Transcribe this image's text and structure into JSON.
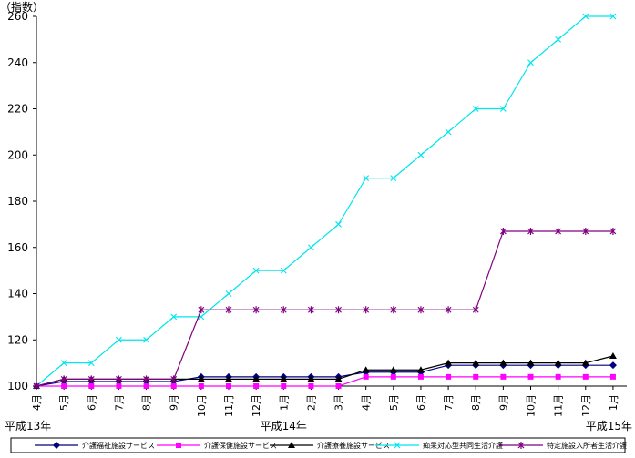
{
  "chart_data": {
    "type": "line",
    "y_unit_label": "（指数）",
    "ylim": [
      100,
      260
    ],
    "yticks": [
      100,
      120,
      140,
      160,
      180,
      200,
      220,
      240,
      260
    ],
    "categories": [
      "4月",
      "5月",
      "6月",
      "7月",
      "8月",
      "9月",
      "10月",
      "11月",
      "12月",
      "1月",
      "2月",
      "3月",
      "4月",
      "5月",
      "6月",
      "7月",
      "8月",
      "9月",
      "10月",
      "11月",
      "12月",
      "1月"
    ],
    "era_labels": [
      {
        "text": "平成13年",
        "index": 0
      },
      {
        "text": "平成14年",
        "index": 9
      },
      {
        "text": "平成15年",
        "index": 21
      }
    ],
    "grid": false,
    "legend_position": "bottom",
    "series": [
      {
        "name": "介護福祉施設サービス",
        "color": "#000080",
        "marker": "diamond",
        "values": [
          100,
          102,
          102,
          102,
          102,
          102,
          104,
          104,
          104,
          104,
          104,
          104,
          106,
          106,
          106,
          109,
          109,
          109,
          109,
          109,
          109,
          109
        ]
      },
      {
        "name": "介護保健施設サービス",
        "color": "#ff00ff",
        "marker": "square",
        "values": [
          100,
          100,
          100,
          100,
          100,
          100,
          100,
          100,
          100,
          100,
          100,
          100,
          104,
          104,
          104,
          104,
          104,
          104,
          104,
          104,
          104,
          104
        ]
      },
      {
        "name": "介護療養施設サービス",
        "color": "#000000",
        "marker": "triangle",
        "values": [
          100,
          103,
          103,
          103,
          103,
          103,
          103,
          103,
          103,
          103,
          103,
          103,
          107,
          107,
          107,
          110,
          110,
          110,
          110,
          110,
          110,
          113
        ]
      },
      {
        "name": "痴呆対応型共同生活介護",
        "color": "#00e5ee",
        "marker": "x",
        "values": [
          100,
          110,
          110,
          120,
          120,
          130,
          130,
          140,
          150,
          150,
          160,
          170,
          190,
          190,
          200,
          210,
          220,
          220,
          240,
          250,
          260,
          260
        ]
      },
      {
        "name": "特定施設入所者生活介護",
        "color": "#800080",
        "marker": "star",
        "values": [
          100,
          103,
          103,
          103,
          103,
          103,
          133,
          133,
          133,
          133,
          133,
          133,
          133,
          133,
          133,
          133,
          133,
          167,
          167,
          167,
          167,
          167
        ]
      }
    ]
  }
}
